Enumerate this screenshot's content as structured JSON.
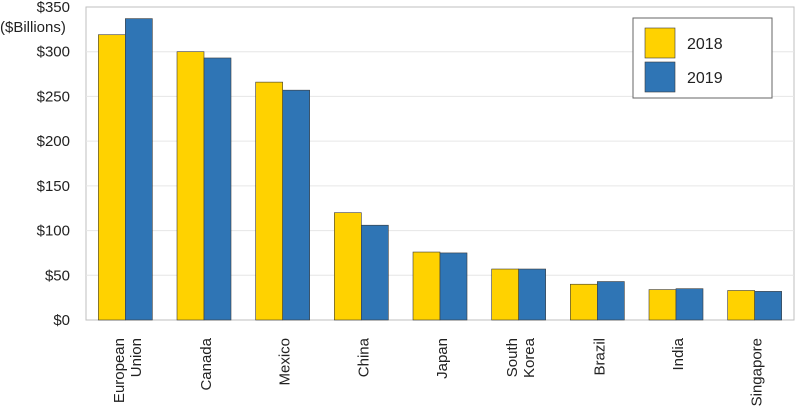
{
  "chart_data": {
    "type": "bar",
    "ylabel": "($Billions)",
    "ylim": [
      0,
      350
    ],
    "yticks": [
      "$0",
      "$50",
      "$100",
      "$150",
      "$200",
      "$250",
      "$300",
      "$350"
    ],
    "ytick_values": [
      0,
      50,
      100,
      150,
      200,
      250,
      300,
      350
    ],
    "categories": [
      [
        "European",
        "Union"
      ],
      [
        "Canada"
      ],
      [
        "Mexico"
      ],
      [
        "China"
      ],
      [
        "Japan"
      ],
      [
        "South",
        "Korea"
      ],
      [
        "Brazil"
      ],
      [
        "India"
      ],
      [
        "Singapore"
      ]
    ],
    "series": [
      {
        "name": "2018",
        "color": "#FFD200",
        "values": [
          319,
          300,
          266,
          120,
          76,
          57,
          40,
          34,
          33
        ]
      },
      {
        "name": "2019",
        "color": "#2F75B5",
        "values": [
          337,
          293,
          257,
          106,
          75,
          57,
          43,
          35,
          32
        ]
      }
    ],
    "grid": true,
    "legend_position": "top-right"
  }
}
